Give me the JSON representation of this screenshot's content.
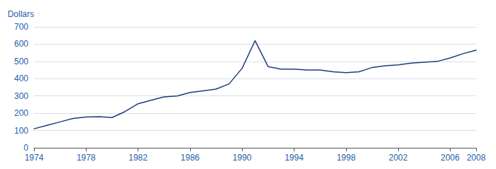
{
  "chart_data": {
    "type": "line",
    "ylabel": "Dollars",
    "x": [
      1974,
      1975,
      1976,
      1977,
      1978,
      1979,
      1980,
      1981,
      1982,
      1983,
      1984,
      1985,
      1986,
      1987,
      1988,
      1989,
      1990,
      1991,
      1992,
      1993,
      1994,
      1995,
      1996,
      1997,
      1998,
      1999,
      2000,
      2001,
      2002,
      2003,
      2004,
      2005,
      2006,
      2007,
      2008
    ],
    "values": [
      110,
      130,
      150,
      170,
      178,
      180,
      175,
      210,
      255,
      275,
      295,
      300,
      320,
      330,
      340,
      370,
      460,
      620,
      470,
      455,
      455,
      450,
      450,
      440,
      435,
      440,
      465,
      475,
      480,
      490,
      495,
      500,
      520,
      545,
      565
    ],
    "color": "#1F3D7A",
    "xlim": [
      1974,
      2008
    ],
    "xticks": [
      1974,
      1978,
      1982,
      1986,
      1990,
      1994,
      1998,
      2002,
      2006,
      2008
    ],
    "ylim": [
      0,
      700
    ],
    "yticks": [
      0,
      100,
      200,
      300,
      400,
      500,
      600,
      700
    ],
    "grid": true
  }
}
